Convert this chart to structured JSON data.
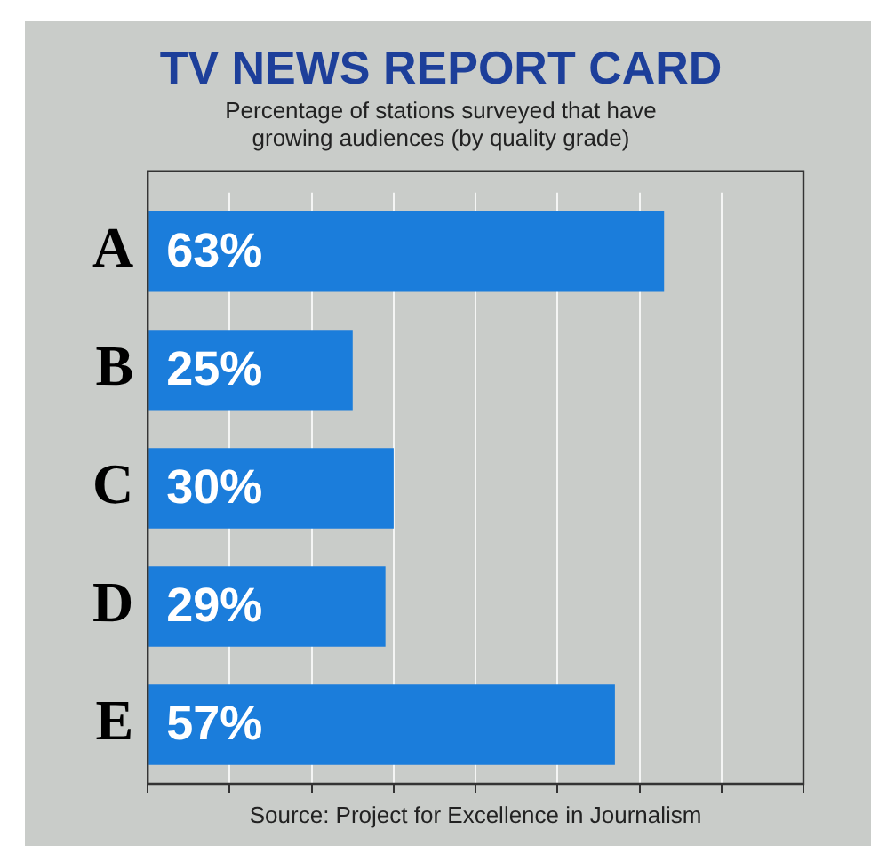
{
  "chart_data": {
    "type": "bar",
    "orientation": "horizontal",
    "title": "TV NEWS REPORT CARD",
    "subtitle": "Percentage of stations surveyed that have\ngrowing audiences (by quality grade)",
    "categories": [
      "A",
      "B",
      "C",
      "D",
      "E"
    ],
    "values": [
      63,
      25,
      30,
      29,
      57
    ],
    "value_labels": [
      "63%",
      "25%",
      "30%",
      "29%",
      "57%"
    ],
    "color": "#1b7ddb",
    "xlim": [
      0,
      80
    ],
    "xticks": [
      {
        "value": 0,
        "label": null
      },
      {
        "value": 10,
        "label": null
      },
      {
        "value": 20,
        "label": null
      },
      {
        "value": 30,
        "label": null
      },
      {
        "value": 40,
        "label": null
      },
      {
        "value": 50,
        "label": null
      },
      {
        "value": 60,
        "label": null
      },
      {
        "value": 70,
        "label": null
      },
      {
        "value": 80,
        "label": null
      }
    ],
    "grid": "x",
    "tick_labels": "y",
    "annotations": [
      "Source: Project for Excellence in Journalism"
    ]
  }
}
